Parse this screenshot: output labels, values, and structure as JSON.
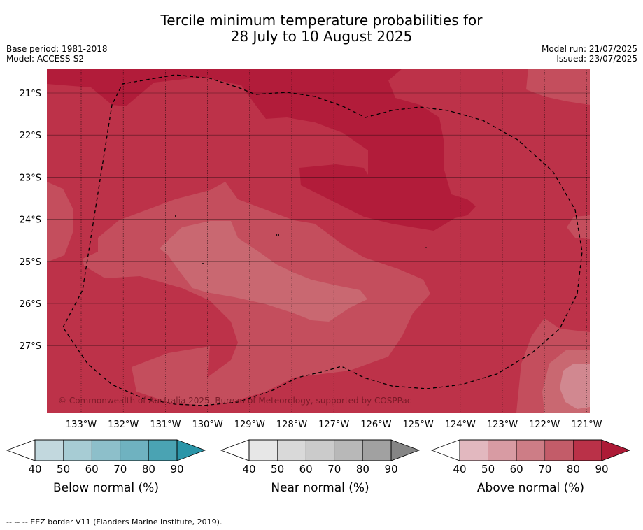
{
  "header": {
    "title_line1": "Tercile minimum temperature probabilities for",
    "title_line2": "28 July to 10 August 2025",
    "base_period": "Base period: 1981-2018",
    "model": "Model: ACCESS-S2",
    "model_run": "Model run: 21/07/2025",
    "issued": "Issued: 23/07/2025"
  },
  "map": {
    "lon_ticks": [
      "133°W",
      "132°W",
      "131°W",
      "130°W",
      "129°W",
      "128°W",
      "127°W",
      "126°W",
      "125°W",
      "124°W",
      "123°W",
      "122°W",
      "121°W"
    ],
    "lat_ticks": [
      "21°S",
      "22°S",
      "23°S",
      "24°S",
      "25°S",
      "26°S",
      "27°S"
    ],
    "copyright": "© Commonwealth of Australia 2025, Bureau of Meteorology, supported by COSPPac",
    "colors": {
      "level_90": "#b21c3a",
      "level_80": "#bd3249",
      "level_70": "#c44e5d",
      "level_60": "#c96871",
      "level_50": "#d18890"
    }
  },
  "legends": [
    {
      "label": "Below normal (%)",
      "ticks": [
        "40",
        "50",
        "60",
        "70",
        "80",
        "90"
      ],
      "colors": [
        "#c2d8de",
        "#a7ccd4",
        "#8dbfca",
        "#6fb2c0",
        "#4aa3b3",
        "#2a95a8"
      ]
    },
    {
      "label": "Near normal (%)",
      "ticks": [
        "40",
        "50",
        "60",
        "70",
        "80",
        "90"
      ],
      "colors": [
        "#e7e7e7",
        "#d9d9d9",
        "#cbcbcb",
        "#b8b8b8",
        "#a1a1a1",
        "#858585"
      ]
    },
    {
      "label": "Above normal (%)",
      "ticks": [
        "40",
        "50",
        "60",
        "70",
        "80",
        "90"
      ],
      "colors": [
        "#e2b8bf",
        "#d89ba3",
        "#cd7d86",
        "#c35c69",
        "#ba3148",
        "#ad1a36"
      ]
    }
  ],
  "footnote": "-- -- -- EEZ border V11 (Flanders Marine Institute, 2019)."
}
